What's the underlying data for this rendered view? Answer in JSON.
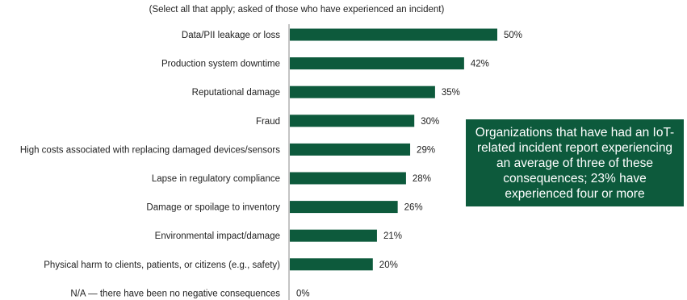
{
  "subtitle": "(Select all that apply; asked of those who have experienced an incident)",
  "callout": "Organizations that have had an IoT-related incident report experiencing an average of three of these consequences; 23% have experienced four or more",
  "colors": {
    "bar": "#0d5a3c",
    "axis": "#888888",
    "callout_bg": "#0d5a3c"
  },
  "chart_data": {
    "type": "bar",
    "orientation": "horizontal",
    "categories": [
      "Data/PII leakage or loss",
      "Production system downtime",
      "Reputational damage",
      "Fraud",
      "High costs associated with replacing damaged devices/sensors",
      "Lapse in regulatory compliance",
      "Damage or spoilage to inventory",
      "Environmental impact/damage",
      "Physical harm to clients, patients, or citizens (e.g., safety)",
      "N/A — there have been no negative consequences"
    ],
    "values": [
      50,
      42,
      35,
      30,
      29,
      28,
      26,
      21,
      20,
      0
    ],
    "value_labels": [
      "50%",
      "42%",
      "35%",
      "30%",
      "29%",
      "28%",
      "26%",
      "21%",
      "20%",
      "0%"
    ],
    "xlim": [
      0,
      50
    ],
    "grid": false
  }
}
